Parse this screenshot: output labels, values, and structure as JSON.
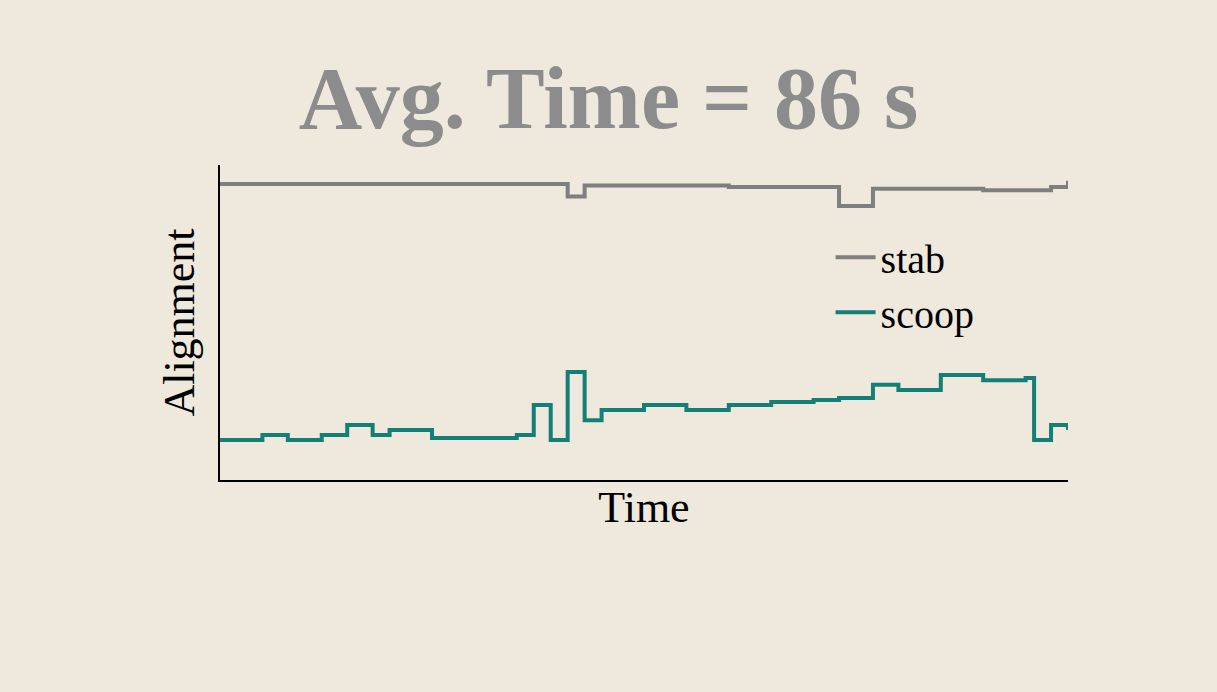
{
  "chart_data": {
    "type": "line",
    "title": "Avg. Time = 86 s",
    "x_label": "Time",
    "y_label": "Alignment",
    "x": [
      0,
      3,
      5,
      8,
      12,
      15,
      18,
      20,
      25,
      30,
      35,
      37,
      39,
      41,
      43,
      45,
      50,
      55,
      60,
      65,
      70,
      73,
      77,
      80,
      85,
      90,
      95,
      96,
      98,
      100
    ],
    "series": [
      {
        "name": "stab",
        "color": "#7f7f7f",
        "values": [
          0.94,
          0.94,
          0.94,
          0.94,
          0.94,
          0.94,
          0.94,
          0.94,
          0.94,
          0.94,
          0.94,
          0.94,
          0.94,
          0.9,
          0.935,
          0.935,
          0.935,
          0.935,
          0.93,
          0.93,
          0.93,
          0.87,
          0.925,
          0.925,
          0.925,
          0.92,
          0.92,
          0.92,
          0.93,
          0.95
        ]
      },
      {
        "name": "scoop",
        "color": "#138078",
        "values": [
          0.127,
          0.127,
          0.143,
          0.127,
          0.143,
          0.175,
          0.143,
          0.159,
          0.133,
          0.133,
          0.143,
          0.238,
          0.127,
          0.343,
          0.19,
          0.222,
          0.238,
          0.222,
          0.238,
          0.248,
          0.254,
          0.26,
          0.302,
          0.286,
          0.333,
          0.317,
          0.324,
          0.127,
          0.175,
          0.159
        ]
      }
    ],
    "xlim": [
      0,
      100
    ],
    "ylim": [
      0,
      1
    ],
    "tick_labels": false,
    "grid": false,
    "legend": "upper right"
  }
}
